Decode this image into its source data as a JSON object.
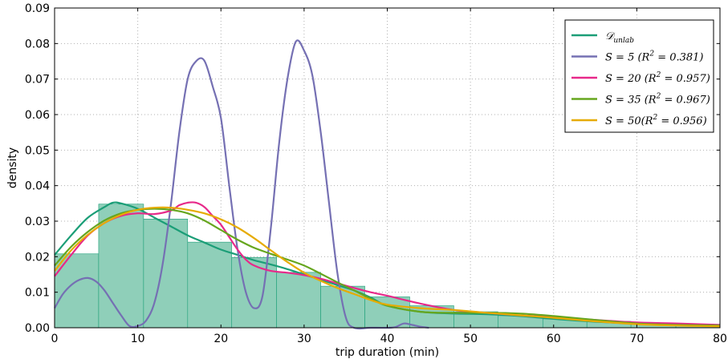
{
  "chart_data": {
    "type": "line",
    "xlabel": "trip duration (min)",
    "ylabel": "density",
    "xlim": [
      0,
      80
    ],
    "ylim": [
      0,
      0.09
    ],
    "xticks": [
      "0",
      "10",
      "20",
      "30",
      "40",
      "50",
      "60",
      "70",
      "80"
    ],
    "yticks": [
      "0.00",
      "0.01",
      "0.02",
      "0.03",
      "0.04",
      "0.05",
      "0.06",
      "0.07",
      "0.08",
      "0.09"
    ],
    "grid": true,
    "legend_position": "top-right",
    "histogram": {
      "color": "#8fcfb9",
      "edge_color": "#1b9e77",
      "bins": [
        {
          "x0": 0,
          "x1": 5.3,
          "value": 0.0208
        },
        {
          "x0": 5.3,
          "x1": 10.7,
          "value": 0.0348
        },
        {
          "x0": 10.7,
          "x1": 16.0,
          "value": 0.0306
        },
        {
          "x0": 16.0,
          "x1": 21.3,
          "value": 0.0241
        },
        {
          "x0": 21.3,
          "x1": 26.7,
          "value": 0.0198
        },
        {
          "x0": 26.7,
          "x1": 32.0,
          "value": 0.0156
        },
        {
          "x0": 32.0,
          "x1": 37.3,
          "value": 0.0117
        },
        {
          "x0": 37.3,
          "x1": 42.7,
          "value": 0.0087
        },
        {
          "x0": 42.7,
          "x1": 48.0,
          "value": 0.0062
        },
        {
          "x0": 48.0,
          "x1": 53.3,
          "value": 0.0045
        },
        {
          "x0": 53.3,
          "x1": 58.7,
          "value": 0.0034
        },
        {
          "x0": 58.7,
          "x1": 64.0,
          "value": 0.0025
        },
        {
          "x0": 64.0,
          "x1": 69.3,
          "value": 0.0018
        },
        {
          "x0": 69.3,
          "x1": 74.7,
          "value": 0.0013
        },
        {
          "x0": 74.7,
          "x1": 80.0,
          "value": 0.0009
        }
      ]
    },
    "series": [
      {
        "name": "𝒟unlab",
        "legend": {
          "main": "𝒟",
          "sub": "unlab"
        },
        "color": "#1b9e77",
        "x": [
          0,
          2,
          4,
          6,
          7,
          8,
          10,
          12,
          14,
          16,
          18,
          20,
          22,
          24,
          26,
          28,
          30,
          32,
          34,
          36,
          38,
          40,
          44,
          48,
          52,
          56,
          60,
          65,
          70,
          75,
          80
        ],
        "y": [
          0.0205,
          0.026,
          0.031,
          0.034,
          0.0352,
          0.035,
          0.0335,
          0.031,
          0.0285,
          0.026,
          0.024,
          0.022,
          0.0205,
          0.019,
          0.0178,
          0.0165,
          0.015,
          0.0135,
          0.012,
          0.0105,
          0.0085,
          0.0062,
          0.0045,
          0.004,
          0.0038,
          0.0033,
          0.0025,
          0.0017,
          0.0012,
          0.001,
          0.0008
        ]
      },
      {
        "name": "S = 5 (R² = 0.381)",
        "legend": {
          "main": "S = 5 (R",
          "sup": "2",
          "rest": " = 0.381)"
        },
        "color": "#7570b3",
        "x": [
          0,
          1,
          2,
          3,
          4,
          5,
          6,
          7,
          8,
          9,
          10,
          11,
          12,
          13,
          14,
          15,
          16,
          17,
          18,
          19,
          20,
          21,
          22,
          23,
          24,
          25,
          26,
          27,
          28,
          29,
          30,
          31,
          32,
          33,
          34,
          35,
          36,
          38,
          40,
          41,
          42,
          43,
          44,
          45
        ],
        "y": [
          0.0055,
          0.0095,
          0.012,
          0.0135,
          0.014,
          0.013,
          0.0105,
          0.007,
          0.0035,
          0.0005,
          0.0005,
          0.002,
          0.007,
          0.018,
          0.035,
          0.055,
          0.07,
          0.075,
          0.0752,
          0.068,
          0.059,
          0.04,
          0.022,
          0.01,
          0.0055,
          0.009,
          0.028,
          0.052,
          0.07,
          0.0805,
          0.078,
          0.071,
          0.055,
          0.035,
          0.0155,
          0.003,
          0.0,
          0.0,
          0.0,
          0.0002,
          0.0012,
          0.0008,
          0.0003,
          0.0
        ]
      },
      {
        "name": "S = 20 (R² = 0.957)",
        "legend": {
          "main": "S = 20 (R",
          "sup": "2",
          "rest": " = 0.957)"
        },
        "color": "#e7298a",
        "x": [
          0,
          2,
          4,
          6,
          8,
          10,
          12,
          14,
          15,
          16,
          17,
          18,
          19,
          20,
          21,
          22,
          23,
          24,
          26,
          28,
          30,
          32,
          34,
          36,
          38,
          40,
          44,
          48,
          52,
          56,
          60,
          65,
          70,
          75,
          80
        ],
        "y": [
          0.0145,
          0.0205,
          0.026,
          0.0295,
          0.0315,
          0.0322,
          0.032,
          0.033,
          0.0345,
          0.0352,
          0.0352,
          0.034,
          0.0315,
          0.029,
          0.0255,
          0.022,
          0.0192,
          0.0175,
          0.016,
          0.0155,
          0.0148,
          0.0138,
          0.0125,
          0.0112,
          0.01,
          0.009,
          0.0068,
          0.005,
          0.0042,
          0.0035,
          0.003,
          0.0022,
          0.0015,
          0.0012,
          0.0008
        ]
      },
      {
        "name": "S = 35 (R² = 0.967)",
        "legend": {
          "main": "S = 35 (R",
          "sup": "2",
          "rest": " = 0.967)"
        },
        "color": "#66a61e",
        "x": [
          0,
          2,
          4,
          6,
          8,
          10,
          12,
          14,
          16,
          18,
          20,
          22,
          24,
          26,
          28,
          30,
          32,
          34,
          36,
          38,
          40,
          44,
          48,
          52,
          56,
          60,
          65,
          70,
          75,
          80
        ],
        "y": [
          0.0175,
          0.0228,
          0.027,
          0.0302,
          0.0322,
          0.0332,
          0.0335,
          0.0332,
          0.0322,
          0.0302,
          0.0275,
          0.0248,
          0.0225,
          0.0208,
          0.0192,
          0.0175,
          0.0152,
          0.0128,
          0.0105,
          0.0082,
          0.0062,
          0.0045,
          0.0042,
          0.0042,
          0.004,
          0.0033,
          0.0022,
          0.0012,
          0.0008,
          0.0006
        ]
      },
      {
        "name": "S = 50(R² = 0.956)",
        "legend": {
          "main": "S = 50(R",
          "sup": "2",
          "rest": " = 0.956)"
        },
        "color": "#e6ab02",
        "x": [
          0,
          2,
          4,
          6,
          8,
          10,
          12,
          14,
          16,
          18,
          20,
          22,
          24,
          26,
          28,
          30,
          32,
          34,
          36,
          38,
          40,
          44,
          48,
          52,
          56,
          60,
          65,
          70,
          75,
          80
        ],
        "y": [
          0.016,
          0.0218,
          0.0262,
          0.0295,
          0.0318,
          0.0332,
          0.0338,
          0.0338,
          0.0332,
          0.0322,
          0.0305,
          0.0282,
          0.0252,
          0.0218,
          0.0185,
          0.0155,
          0.0132,
          0.0112,
          0.0095,
          0.0078,
          0.0065,
          0.0055,
          0.005,
          0.0042,
          0.0035,
          0.0028,
          0.0018,
          0.001,
          0.0006,
          0.0004
        ]
      }
    ]
  }
}
